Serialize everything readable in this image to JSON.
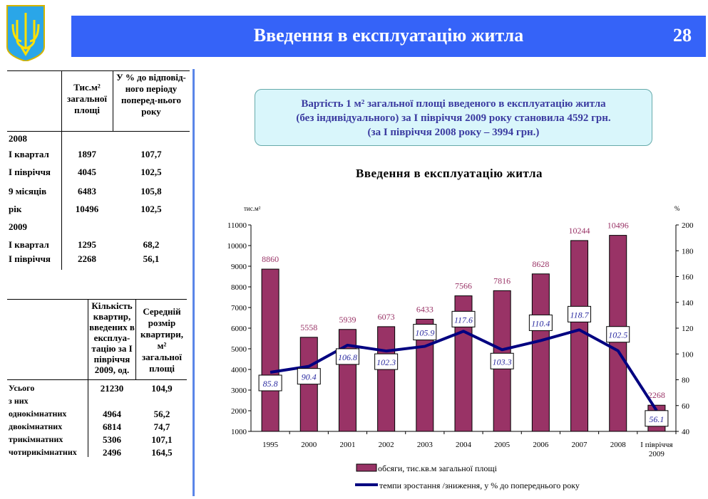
{
  "header": {
    "title": "Введення в експлуатацію житла",
    "page": "28"
  },
  "table1": {
    "headers": [
      "Тис.м² загальної площі",
      "У % до відповід-ного періоду поперед-нього року"
    ],
    "rows": [
      {
        "label": "2008",
        "v1": "",
        "v2": ""
      },
      {
        "label": "І квартал",
        "v1": "1897",
        "v2": "107,7"
      },
      {
        "label": "І півріччя",
        "v1": "4045",
        "v2": "102,5"
      },
      {
        "label": "9 місяців",
        "v1": "6483",
        "v2": "105,8"
      },
      {
        "label": "рік",
        "v1": "10496",
        "v2": "102,5"
      },
      {
        "label": "2009",
        "v1": "",
        "v2": ""
      },
      {
        "label": "І квартал",
        "v1": "1295",
        "v2": "68,2"
      },
      {
        "label": "І півріччя",
        "v1": "2268",
        "v2": "56,1"
      }
    ]
  },
  "table2": {
    "headers": [
      "Кількість квартир, введених в експлуа-тацію за І півріччя 2009, од.",
      "Середній розмір квартири, м² загальної площі"
    ],
    "rows": [
      {
        "label": "Усього",
        "v1": "21230",
        "v2": "104,9"
      },
      {
        "label": "з них",
        "v1": "",
        "v2": ""
      },
      {
        "label": "однокімнатних",
        "v1": "4964",
        "v2": "56,2"
      },
      {
        "label": "двокімнатних",
        "v1": "6814",
        "v2": "74,7"
      },
      {
        "label": "трикімнатних",
        "v1": "5306",
        "v2": "107,1"
      },
      {
        "label": "чотирикімнатних",
        "v1": "2496",
        "v2": "164,5"
      }
    ]
  },
  "note": {
    "line1": "Вартість 1 м² загальної площі введеного в експлуатацію житла",
    "line2": "(без індивідуального) за І півріччя 2009 року становила 4592 грн.",
    "line3": "(за І півріччя 2008 року – 3994 грн.)"
  },
  "chart_data": {
    "type": "bar+line",
    "title": "Введення в експлуатацію житла",
    "ylabel_left": "тис.м²",
    "ylabel_right": "%",
    "ylim_left": [
      1000,
      11000
    ],
    "yticks_left": [
      1000,
      2000,
      3000,
      4000,
      5000,
      6000,
      7000,
      8000,
      9000,
      10000,
      11000
    ],
    "ylim_right": [
      40,
      200
    ],
    "yticks_right": [
      40,
      60,
      80,
      100,
      120,
      140,
      160,
      180,
      200
    ],
    "categories": [
      "1995",
      "2000",
      "2001",
      "2002",
      "2003",
      "2004",
      "2005",
      "2006",
      "2007",
      "2008",
      "І півріччя 2009"
    ],
    "series": [
      {
        "name": "обсяги, тис.кв.м загальної площі",
        "type": "bar",
        "axis": "left",
        "color": "#993366",
        "values": [
          8860,
          5558,
          5939,
          6073,
          6433,
          7566,
          7816,
          8628,
          10244,
          10496,
          2268
        ]
      },
      {
        "name": "темпи зростання /зниження, у % до попереднього року",
        "type": "line",
        "axis": "right",
        "color": "#000080",
        "values": [
          85.8,
          90.4,
          106.8,
          102.3,
          105.9,
          117.6,
          103.3,
          110.4,
          118.7,
          102.5,
          56.1
        ]
      }
    ],
    "legend": "bottom",
    "grid": false
  }
}
